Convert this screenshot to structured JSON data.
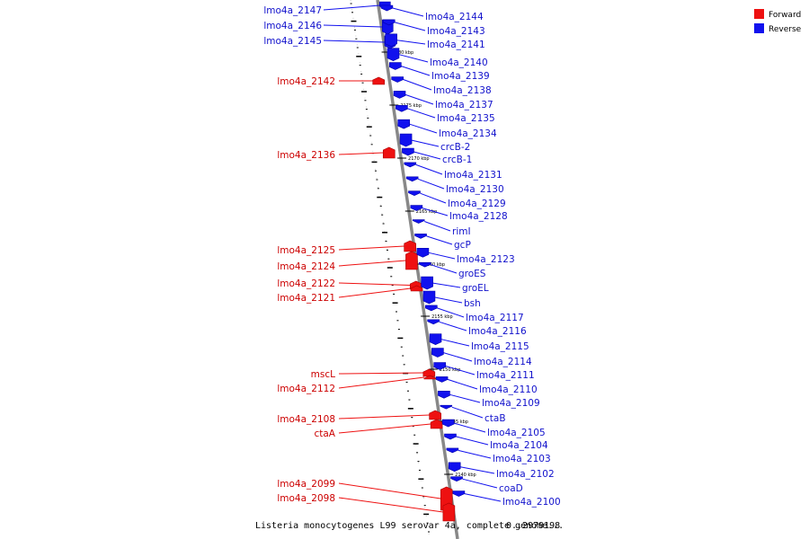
{
  "legend": [
    {
      "label": "Forward",
      "color": "#ee1111"
    },
    {
      "label": "Reverse",
      "color": "#1111ee"
    }
  ],
  "caption": "Listeria monocytogenes L99 serovar 4a, complete genome...",
  "caption_range": "0..2979198",
  "caption_sep": "...",
  "kbp_marks": [
    "2180 kbp",
    "2175 kbp",
    "2170 kbp",
    "2165 kbp",
    "2160 kbp",
    "2155 kbp",
    "2150 kbp",
    "2145 kbp",
    "2140 kbp"
  ],
  "forward_genes": [
    "lmo4a_2142",
    "lmo4a_2136",
    "lmo4a_2125",
    "lmo4a_2124",
    "lmo4a_2122",
    "lmo4a_2121",
    "mscL",
    "lmo4a_2112",
    "lmo4a_2108",
    "ctaA",
    "lmo4a_2099",
    "lmo4a_2098"
  ],
  "reverse_genes_left": [
    "lmo4a_2147",
    "lmo4a_2146",
    "lmo4a_2145"
  ],
  "reverse_genes_right": [
    "lmo4a_2144",
    "lmo4a_2143",
    "lmo4a_2141",
    "lmo4a_2140",
    "lmo4a_2139",
    "lmo4a_2138",
    "lmo4a_2137",
    "lmo4a_2135",
    "lmo4a_2134",
    "crcB-2",
    "crcB-1",
    "lmo4a_2131",
    "lmo4a_2130",
    "lmo4a_2129",
    "lmo4a_2128",
    "rimI",
    "gcP",
    "lmo4a_2123",
    "groES",
    "groEL",
    "bsh",
    "lmo4a_2117",
    "lmo4a_2116",
    "lmo4a_2115",
    "lmo4a_2114",
    "lmo4a_2111",
    "lmo4a_2110",
    "lmo4a_2109",
    "ctaB",
    "lmo4a_2105",
    "lmo4a_2104",
    "lmo4a_2103",
    "lmo4a_2102",
    "coaD",
    "lmo4a_2100"
  ]
}
